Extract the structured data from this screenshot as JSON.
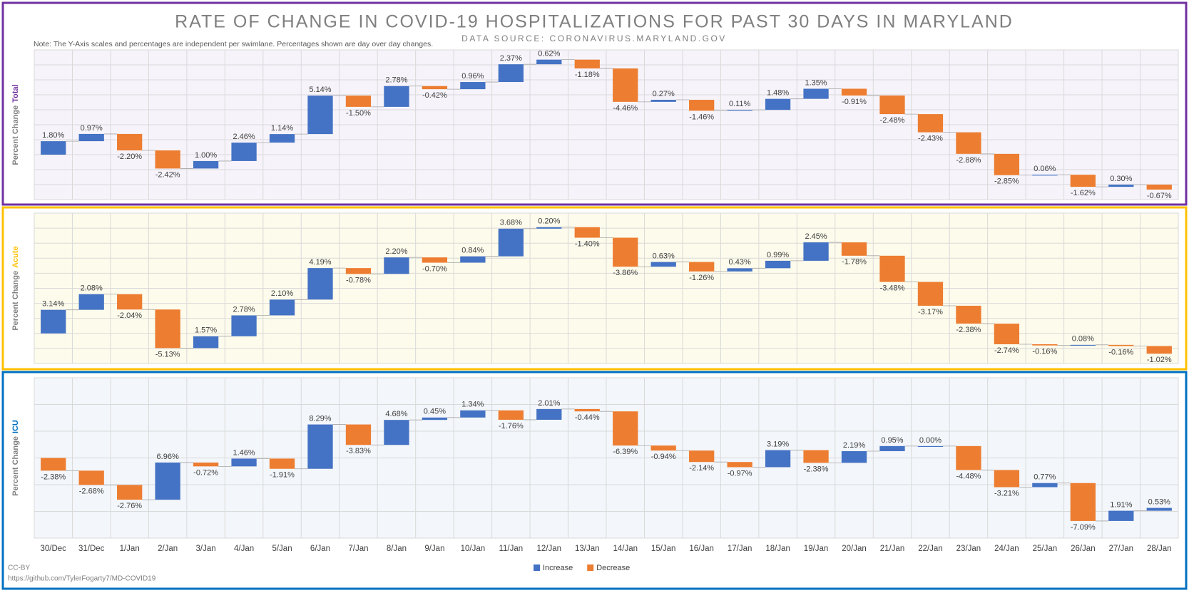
{
  "title": "RATE OF CHANGE IN COVID-19 HOSPITALIZATIONS FOR PAST 30 DAYS IN MARYLAND",
  "subtitle": "DATA SOURCE: CORONAVIRUS.MARYLAND.GOV",
  "note": "Note: The Y-Axis scales and percentages are independent per swimlane. Percentages shown are day over day changes.",
  "footer": [
    "CC-BY",
    "https://github.com/TylerFogarty7/MD-COVID19"
  ],
  "categories": [
    "30/Dec",
    "31/Dec",
    "1/Jan",
    "2/Jan",
    "3/Jan",
    "4/Jan",
    "5/Jan",
    "6/Jan",
    "7/Jan",
    "8/Jan",
    "9/Jan",
    "10/Jan",
    "11/Jan",
    "12/Jan",
    "13/Jan",
    "14/Jan",
    "15/Jan",
    "16/Jan",
    "17/Jan",
    "18/Jan",
    "19/Jan",
    "20/Jan",
    "21/Jan",
    "22/Jan",
    "23/Jan",
    "24/Jan",
    "25/Jan",
    "26/Jan",
    "27/Jan",
    "28/Jan"
  ],
  "legend": [
    {
      "name": "Increase",
      "color": "#4472c4"
    },
    {
      "name": "Decrease",
      "color": "#ed7d31"
    }
  ],
  "chart_data": [
    {
      "type": "waterfall",
      "ylabel": "Percent Change",
      "panel_label": "Total",
      "panel_color": "#7030a0",
      "background": "#f6f4fa",
      "values": [
        1.8,
        0.97,
        -2.2,
        -2.42,
        1.0,
        2.46,
        1.14,
        5.14,
        -1.5,
        2.78,
        -0.42,
        0.96,
        2.37,
        0.62,
        -1.18,
        -4.46,
        0.27,
        -1.46,
        0.11,
        1.48,
        1.35,
        -0.91,
        -2.48,
        -2.43,
        -2.88,
        -2.85,
        0.06,
        -1.62,
        0.3,
        -0.67
      ],
      "value_labels": [
        "1.80%",
        "0.97%",
        "-2.20%",
        "-2.42%",
        "1.00%",
        "2.46%",
        "1.14%",
        "5.14%",
        "-1.50%",
        "2.78%",
        "-0.42%",
        "0.96%",
        "2.37%",
        "0.62%",
        "-1.18%",
        "-4.46%",
        "0.27%",
        "-1.46%",
        "0.11%",
        "1.48%",
        "1.35%",
        "-0.91%",
        "-2.48%",
        "-2.43%",
        "-2.88%",
        "-2.85%",
        "0.06%",
        "-1.62%",
        "0.30%",
        "-0.67%"
      ],
      "ylim": [
        -6,
        14
      ],
      "yticks": [
        -6,
        -4,
        -2,
        0,
        2,
        4,
        6,
        8,
        10,
        12,
        14
      ],
      "grid": true
    },
    {
      "type": "waterfall",
      "ylabel": "Percent Change",
      "panel_label": "Acute",
      "panel_color": "#ffc000",
      "background": "#fdfbeb",
      "values": [
        3.14,
        2.08,
        -2.04,
        -5.13,
        1.57,
        2.78,
        2.1,
        4.19,
        -0.78,
        2.2,
        -0.7,
        0.84,
        3.68,
        0.2,
        -1.4,
        -3.86,
        0.63,
        -1.26,
        0.43,
        0.99,
        2.45,
        -1.78,
        -3.48,
        -3.17,
        -2.38,
        -2.74,
        -0.16,
        0.08,
        -0.16,
        -1.02
      ],
      "value_labels": [
        "3.14%",
        "2.08%",
        "-2.04%",
        "-5.13%",
        "1.57%",
        "2.78%",
        "2.10%",
        "4.19%",
        "-0.78%",
        "2.20%",
        "-0.70%",
        "0.84%",
        "3.68%",
        "0.20%",
        "-1.40%",
        "-3.86%",
        "0.63%",
        "-1.26%",
        "0.43%",
        "0.99%",
        "2.45%",
        "-1.78%",
        "-3.48%",
        "-3.17%",
        "-2.38%",
        "-2.74%",
        "-0.16%",
        "0.08%",
        "-0.16%",
        "-1.02%"
      ],
      "ylim": [
        -4,
        16
      ],
      "yticks": [
        -4,
        -2,
        0,
        2,
        4,
        6,
        8,
        10,
        12,
        14,
        16
      ],
      "grid": true
    },
    {
      "type": "waterfall",
      "ylabel": "Percent Change",
      "panel_label": "ICU",
      "panel_color": "#0070c0",
      "background": "#f3f6fa",
      "values": [
        -2.38,
        -2.68,
        -2.76,
        6.96,
        -0.72,
        1.46,
        -1.91,
        8.29,
        -3.83,
        4.68,
        0.45,
        1.34,
        -1.76,
        2.01,
        -0.44,
        -6.39,
        -0.94,
        -2.14,
        -0.97,
        3.19,
        -2.38,
        2.19,
        0.95,
        0.0,
        -4.48,
        -3.21,
        0.77,
        -7.09,
        1.91,
        0.53
      ],
      "value_labels": [
        "-2.38%",
        "-2.68%",
        "-2.76%",
        "6.96%",
        "-0.72%",
        "1.46%",
        "-1.91%",
        "8.29%",
        "-3.83%",
        "4.68%",
        "0.45%",
        "1.34%",
        "-1.76%",
        "2.01%",
        "-0.44%",
        "-6.39%",
        "-0.94%",
        "-2.14%",
        "-0.97%",
        "3.19%",
        "-2.38%",
        "2.19%",
        "0.95%",
        "0.00%",
        "-4.48%",
        "-3.21%",
        "0.77%",
        "-7.09%",
        "1.91%",
        "0.53%"
      ],
      "ylim": [
        -15,
        15
      ],
      "yticks": [
        -15,
        -10,
        -5,
        0,
        5,
        10,
        15
      ],
      "grid": true
    }
  ]
}
